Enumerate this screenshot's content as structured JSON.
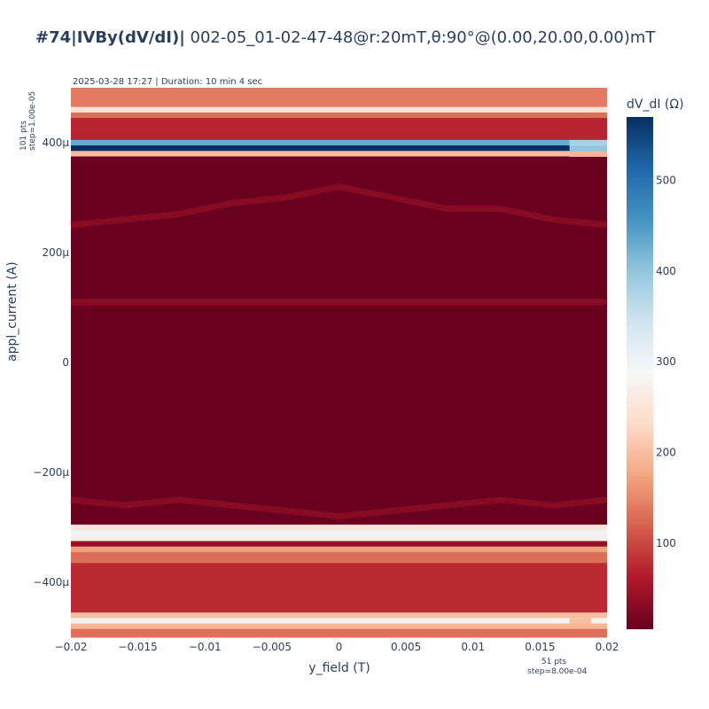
{
  "title": {
    "bold": "#74|IVBy(dV/dI)|",
    "rest": " 002-05_01-02-47-48@r:20mT,θ:90°@(0.00,20.00,0.00)mT"
  },
  "annotation_top": "2025-03-28 17:27 | Duration: 10 min 4 sec",
  "annotation_y_pts": [
    "101 pts",
    "step=1.00e-05"
  ],
  "annotation_x_pts": [
    "51 pts",
    "step=8.00e-04"
  ],
  "chart_data": {
    "type": "heatmap",
    "title": "#74|IVBy(dV/dI)| 002-05_01-02-47-48@r:20mT,θ:90°@(0.00,20.00,0.00)mT",
    "xlabel": "y_field (T)",
    "ylabel": "appl_current (A)",
    "colorbar_title": "dV_dI (Ω)",
    "colorscale": "RdBu",
    "zlim": [
      5,
      570
    ],
    "xlim": [
      -0.02,
      0.02
    ],
    "ylim": [
      -0.0005,
      0.0005
    ],
    "x_points": 51,
    "x_step": 0.0008,
    "y_points": 101,
    "y_step": 1e-05,
    "x_ticks": [
      "−0.02",
      "−0.015",
      "−0.01",
      "−0.005",
      "0",
      "0.005",
      "0.01",
      "0.015",
      "0.02"
    ],
    "x_tick_values": [
      -0.02,
      -0.015,
      -0.01,
      -0.005,
      0,
      0.005,
      0.01,
      0.015,
      0.02
    ],
    "y_ticks": [
      "−400μ",
      "−200μ",
      "0",
      "200μ",
      "400μ"
    ],
    "y_tick_values": [
      -0.0004,
      -0.0002,
      0,
      0.0002,
      0.0004
    ],
    "colorbar_ticks": [
      "100",
      "200",
      "300",
      "400",
      "500"
    ],
    "colorbar_tick_values": [
      100,
      200,
      300,
      400,
      500
    ],
    "row_profile": [
      {
        "y_from": 0.000465,
        "y_to": 0.0005,
        "dvdi": 140
      },
      {
        "y_from": 0.000455,
        "y_to": 0.000465,
        "dvdi": 250
      },
      {
        "y_from": 0.000445,
        "y_to": 0.000455,
        "dvdi": 130
      },
      {
        "y_from": 0.000405,
        "y_to": 0.000445,
        "dvdi": 70
      },
      {
        "y_from": 0.000395,
        "y_to": 0.000405,
        "dvdi": 430
      },
      {
        "y_from": 0.000385,
        "y_to": 0.000395,
        "dvdi": 570
      },
      {
        "y_from": 0.000375,
        "y_to": 0.000385,
        "dvdi": 200
      },
      {
        "y_from": -0.000295,
        "y_to": 0.000375,
        "dvdi": 8
      },
      {
        "y_from": -0.000305,
        "y_to": -0.000295,
        "dvdi": 250
      },
      {
        "y_from": -0.000315,
        "y_to": -0.000305,
        "dvdi": 300
      },
      {
        "y_from": -0.000325,
        "y_to": -0.000315,
        "dvdi": 270
      },
      {
        "y_from": -0.000335,
        "y_to": -0.000325,
        "dvdi": 40
      },
      {
        "y_from": -0.000345,
        "y_to": -0.000335,
        "dvdi": 170
      },
      {
        "y_from": -0.000365,
        "y_to": -0.000345,
        "dvdi": 130
      },
      {
        "y_from": -0.000455,
        "y_to": -0.000365,
        "dvdi": 75
      },
      {
        "y_from": -0.000465,
        "y_to": -0.000455,
        "dvdi": 200
      },
      {
        "y_from": -0.000475,
        "y_to": -0.000465,
        "dvdi": 280
      },
      {
        "y_from": -0.000485,
        "y_to": -0.000475,
        "dvdi": 190
      },
      {
        "y_from": -0.0005,
        "y_to": -0.000485,
        "dvdi": 130
      }
    ],
    "cell_overrides": [
      {
        "x_from": 0.0172,
        "x_to": 0.0204,
        "y_from": 0.000375,
        "y_to": 0.000385,
        "dvdi": 190
      },
      {
        "x_from": 0.0172,
        "x_to": 0.0204,
        "y_from": 0.000385,
        "y_to": 0.000395,
        "dvdi": 400
      },
      {
        "x_from": 0.0172,
        "x_to": 0.0204,
        "y_from": 0.000395,
        "y_to": 0.000405,
        "dvdi": 380
      },
      {
        "x_from": 0.0172,
        "x_to": 0.0188,
        "y_from": -0.000475,
        "y_to": -0.000465,
        "dvdi": 200
      }
    ],
    "switching_current_ridge": {
      "dvdi": 30,
      "x": [
        -0.02,
        -0.016,
        -0.012,
        -0.008,
        -0.004,
        0,
        0.004,
        0.008,
        0.012,
        0.016,
        0.02
      ],
      "y_upper": [
        0.00025,
        0.00026,
        0.00027,
        0.00029,
        0.0003,
        0.00032,
        0.0003,
        0.00028,
        0.00028,
        0.00026,
        0.00025
      ],
      "y_upper2": [
        0.00011,
        0.00011,
        0.00011,
        0.00011,
        0.00011,
        0.00011,
        0.00011,
        0.00011,
        0.00011,
        0.00011,
        0.00011
      ],
      "y_lower": [
        -0.00025,
        -0.00026,
        -0.00025,
        -0.00026,
        -0.00027,
        -0.00028,
        -0.00027,
        -0.00026,
        -0.00025,
        -0.00026,
        -0.00025
      ]
    }
  }
}
